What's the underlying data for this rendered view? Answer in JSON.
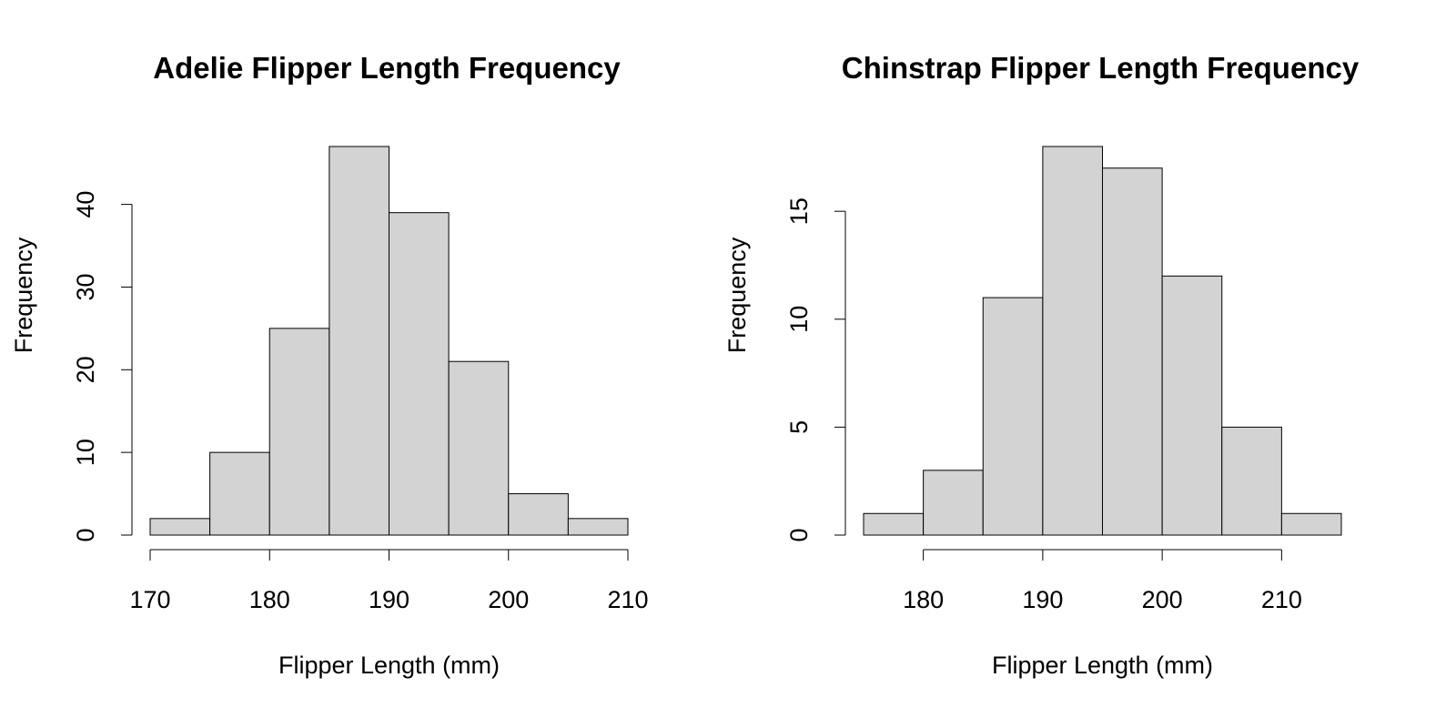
{
  "chart_data": [
    {
      "type": "bar",
      "title": "Adelie Flipper Length Frequency",
      "xlabel": "Flipper Length (mm)",
      "ylabel": "Frequency",
      "bin_edges": [
        170,
        175,
        180,
        185,
        190,
        195,
        200,
        205,
        210
      ],
      "values": [
        2,
        10,
        25,
        47,
        39,
        21,
        5,
        2
      ],
      "xlim": [
        170,
        210
      ],
      "ylim": [
        0,
        47
      ],
      "x_ticks": [
        170,
        180,
        190,
        200,
        210
      ],
      "y_ticks": [
        0,
        10,
        20,
        30,
        40
      ],
      "bar_color": "#d3d3d3",
      "grid": false
    },
    {
      "type": "bar",
      "title": "Chinstrap Flipper Length Frequency",
      "xlabel": "Flipper Length (mm)",
      "ylabel": "Frequency",
      "bin_edges": [
        175,
        180,
        185,
        190,
        195,
        200,
        205,
        210,
        215
      ],
      "values": [
        1,
        3,
        11,
        18,
        17,
        12,
        5,
        1
      ],
      "xlim": [
        175,
        215
      ],
      "ylim": [
        0,
        18
      ],
      "x_ticks": [
        180,
        190,
        200,
        210
      ],
      "y_ticks": [
        0,
        5,
        10,
        15
      ],
      "bar_color": "#d3d3d3",
      "grid": false
    }
  ]
}
